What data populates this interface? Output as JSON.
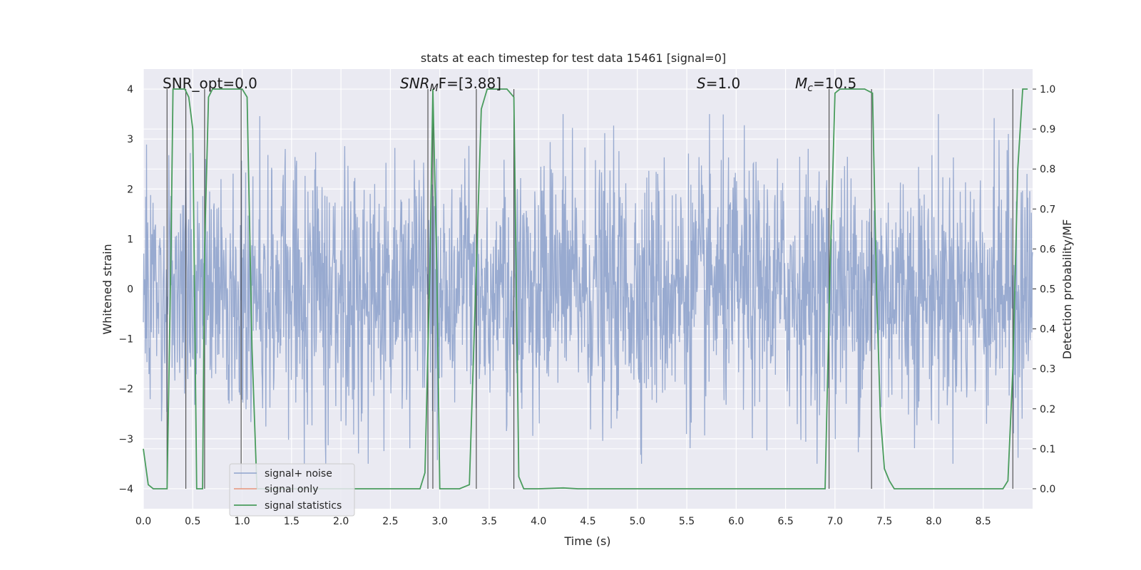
{
  "chart_data": {
    "type": "line",
    "title": "stats at each timestep for test data 15461 [signal=0]",
    "xlabel": "Time (s)",
    "ylabel": "Whitened strain",
    "y2label": "Detection probability/MF",
    "xlim": [
      0.0,
      9.0
    ],
    "ylim": [
      -4.4,
      4.4
    ],
    "y2lim": [
      -0.05,
      1.05
    ],
    "xticks": [
      "0.0",
      "0.5",
      "1.0",
      "1.5",
      "2.0",
      "2.5",
      "3.0",
      "3.5",
      "4.0",
      "4.5",
      "5.0",
      "5.5",
      "6.0",
      "6.5",
      "7.0",
      "7.5",
      "8.0",
      "8.5"
    ],
    "yticks": [
      "4",
      "3",
      "2",
      "1",
      "0",
      "−1",
      "−2",
      "−3",
      "−4"
    ],
    "y2ticks": [
      "1.0",
      "0.9",
      "0.8",
      "0.7",
      "0.6",
      "0.5",
      "0.4",
      "0.3",
      "0.2",
      "0.1",
      "0.0"
    ],
    "grid": true,
    "legend_position": "lower-left",
    "annotations": {
      "snr_opt": "SNR_opt=0.0",
      "snr_mf_sym": "SNR",
      "snr_mf_sub": "M",
      "snr_mf_rest": "F=[3.88]",
      "s_sym": "S",
      "s_rest": "=1.0",
      "mc_sym": "M",
      "mc_sub": "c",
      "mc_rest": "=10.5"
    },
    "series": [
      {
        "name": "signal+ noise",
        "color": "#8fa3cc",
        "noise_envelope": {
          "typical_abs": 1.5,
          "peak_abs": 3.5
        }
      },
      {
        "name": "signal only",
        "color": "#e8957a",
        "values": []
      },
      {
        "name": "signal statistics",
        "color": "#4a9c5d",
        "axis": "right",
        "x": [
          0.0,
          0.05,
          0.1,
          0.2,
          0.24,
          0.28,
          0.3,
          0.34,
          0.38,
          0.42,
          0.46,
          0.5,
          0.54,
          0.56,
          0.6,
          0.62,
          0.66,
          0.7,
          0.75,
          0.8,
          0.85,
          0.9,
          0.95,
          1.0,
          1.05,
          1.1,
          1.15,
          1.3,
          2.0,
          2.8,
          2.85,
          2.9,
          2.93,
          2.97,
          3.0,
          3.05,
          3.1,
          3.2,
          3.3,
          3.37,
          3.42,
          3.48,
          3.55,
          3.62,
          3.68,
          3.75,
          3.8,
          3.85,
          4.0,
          4.25,
          4.4,
          5.0,
          6.0,
          6.9,
          6.95,
          7.0,
          7.05,
          7.15,
          7.3,
          7.38,
          7.42,
          7.46,
          7.5,
          7.55,
          7.6,
          7.65,
          7.7,
          8.0,
          8.5,
          8.7,
          8.75,
          8.8,
          8.85,
          8.9,
          8.95
        ],
        "values": [
          0.1,
          0.01,
          0.0,
          0.0,
          0.0,
          0.6,
          1.0,
          1.0,
          1.0,
          1.0,
          0.98,
          0.9,
          0.0,
          0.0,
          0.0,
          0.6,
          0.98,
          1.0,
          1.0,
          1.0,
          1.0,
          1.0,
          1.0,
          1.0,
          0.98,
          0.35,
          0.0,
          0.0,
          0.0,
          0.0,
          0.04,
          0.55,
          1.0,
          0.55,
          0.0,
          0.0,
          0.0,
          0.0,
          0.01,
          0.55,
          0.95,
          1.0,
          1.0,
          1.0,
          1.0,
          0.98,
          0.03,
          0.0,
          0.0,
          0.002,
          0.0,
          0.0,
          0.0,
          0.0,
          0.55,
          0.99,
          1.0,
          1.0,
          1.0,
          0.99,
          0.5,
          0.18,
          0.05,
          0.02,
          0.0,
          0.0,
          0.0,
          0.0,
          0.0,
          0.0,
          0.02,
          0.3,
          0.8,
          1.0,
          1.0
        ]
      }
    ],
    "vertical_markers": [
      0.24,
      0.43,
      0.62,
      0.99,
      2.88,
      2.93,
      3.37,
      3.75,
      6.94,
      7.37,
      8.8
    ]
  }
}
